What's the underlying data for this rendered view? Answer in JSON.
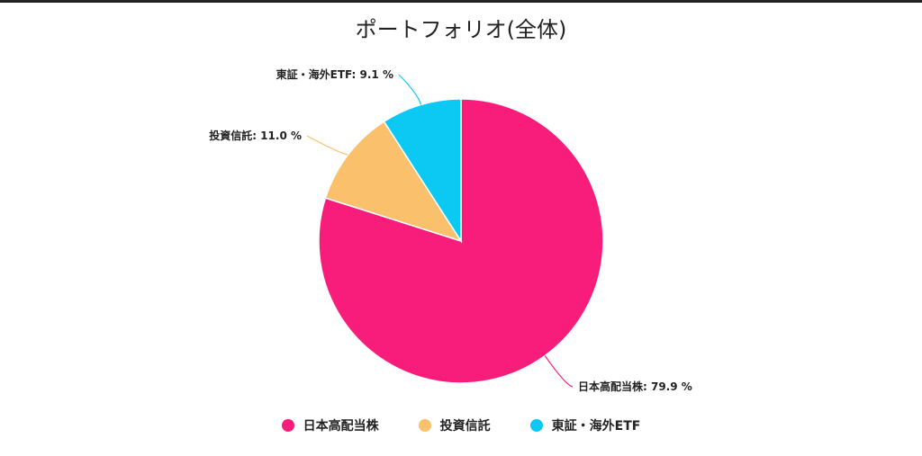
{
  "chart_data": {
    "type": "pie",
    "title": "ポートフォリオ(全体)",
    "slices": [
      {
        "label": "日本高配当株",
        "value": 79.9,
        "color": "#F81C7B",
        "display": "日本高配当株: 79.9 %"
      },
      {
        "label": "投資信託",
        "value": 11.0,
        "color": "#FBC06C",
        "display": "投資信託: 11.0 %"
      },
      {
        "label": "東証・海外ETF",
        "value": 9.1,
        "color": "#0BC9F2",
        "display": "東証・海外ETF: 9.1 %"
      }
    ],
    "start_angle": "12 o'clock",
    "direction": "clockwise",
    "legend_position": "bottom"
  }
}
